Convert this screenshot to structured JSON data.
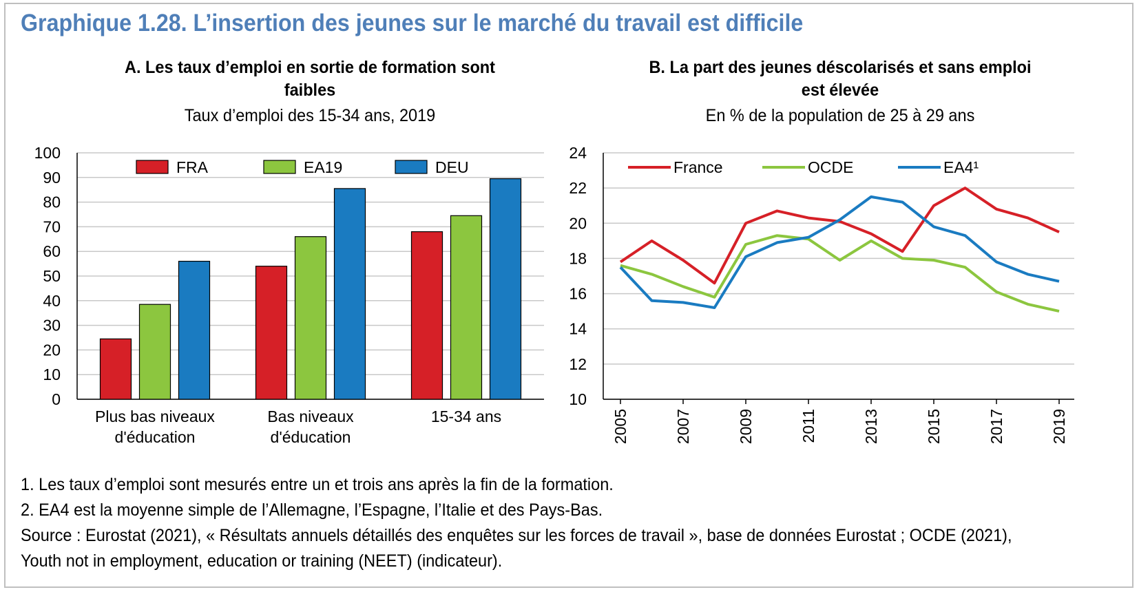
{
  "title": "Graphique 1.28. L’insertion des jeunes sur le marché du travail est difficile",
  "panel_a": {
    "title_line1": "A. Les taux d’emploi en sortie de formation sont",
    "title_line2": "faibles",
    "subtitle": "Taux d’emploi des 15-34 ans, 2019"
  },
  "panel_b": {
    "title_line1": "B. La part des jeunes déscolarisés et sans emploi",
    "title_line2": "est élevée",
    "subtitle": "En % de la population de 25 à 29 ans"
  },
  "chart_data": [
    {
      "type": "bar",
      "categories": [
        "Plus bas niveaux d'éducation",
        "Bas niveaux d'éducation",
        "15-34 ans"
      ],
      "category_lines": [
        [
          "Plus bas niveaux",
          "d'éducation"
        ],
        [
          "Bas niveaux",
          "d'éducation"
        ],
        [
          "15-34 ans"
        ]
      ],
      "series": [
        {
          "name": "FRA",
          "color": "#d62027",
          "values": [
            24.5,
            54,
            68
          ]
        },
        {
          "name": "EA19",
          "color": "#8cc63f",
          "values": [
            38.5,
            66,
            74.5
          ]
        },
        {
          "name": "DEU",
          "color": "#1a7bc1",
          "values": [
            56,
            85.5,
            89.5
          ]
        }
      ],
      "ylim": [
        0,
        100
      ],
      "yticks": [
        0,
        10,
        20,
        30,
        40,
        50,
        60,
        70,
        80,
        90,
        100
      ],
      "grid": true,
      "legend": "top"
    },
    {
      "type": "line",
      "x": [
        2005,
        2006,
        2007,
        2008,
        2009,
        2010,
        2011,
        2012,
        2013,
        2014,
        2015,
        2016,
        2017,
        2018,
        2019
      ],
      "xticks": [
        "2005",
        "2007",
        "2009",
        "2011",
        "2013",
        "2015",
        "2017",
        "2019"
      ],
      "series": [
        {
          "name": "France",
          "color": "#d62027",
          "values": [
            17.8,
            19.0,
            17.9,
            16.6,
            20.0,
            20.7,
            20.3,
            20.1,
            19.4,
            18.4,
            21.0,
            22.0,
            20.8,
            20.3,
            19.5
          ]
        },
        {
          "name": "OCDE",
          "color": "#8cc63f",
          "values": [
            17.6,
            17.1,
            16.4,
            15.8,
            18.8,
            19.3,
            19.1,
            17.9,
            19.0,
            18.0,
            17.9,
            17.5,
            16.1,
            15.4,
            15.0
          ]
        },
        {
          "name": "EA4¹",
          "color": "#1a7bc1",
          "values": [
            17.5,
            15.6,
            15.5,
            15.2,
            18.1,
            18.9,
            19.2,
            20.2,
            21.5,
            21.2,
            19.8,
            19.3,
            17.8,
            17.1,
            16.7
          ]
        }
      ],
      "ylim": [
        10,
        24
      ],
      "yticks": [
        10,
        12,
        14,
        16,
        18,
        20,
        22,
        24
      ],
      "grid": true,
      "legend": "top"
    }
  ],
  "notes": [
    "1. Les taux d’emploi sont mesurés entre un et trois ans après la fin de la formation.",
    "2. EA4 est la moyenne simple de l’Allemagne, l’Espagne, l’Italie et des Pays-Bas.",
    "Source : Eurostat (2021), « Résultats annuels détaillés des enquêtes sur les forces de travail », base de données Eurostat ; OCDE (2021),",
    "Youth not in employment, education or training (NEET) (indicateur)."
  ]
}
